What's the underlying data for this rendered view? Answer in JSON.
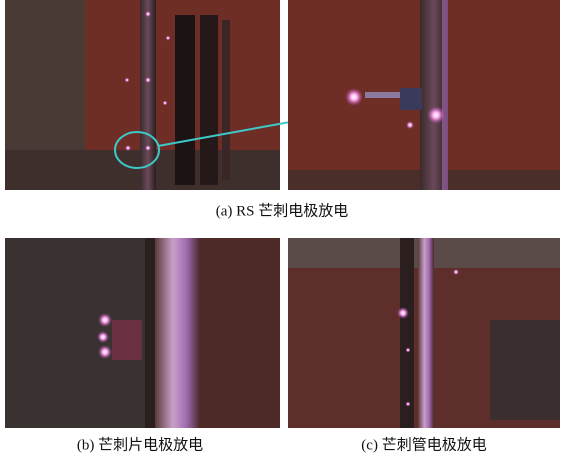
{
  "figure": {
    "captions": [
      "(a) RS 芒刺电极放电",
      "(b)  芒刺片电极放电",
      "(c)  芒刺管电极放电"
    ]
  }
}
